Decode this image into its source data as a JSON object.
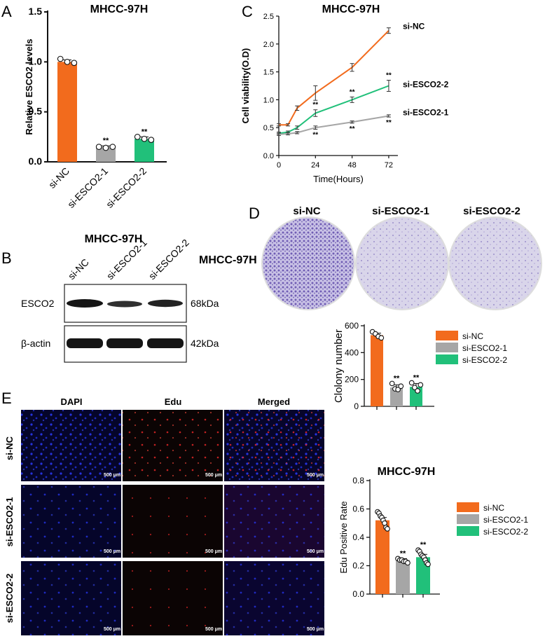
{
  "colors": {
    "siNC": "#f26b1d",
    "siE1": "#a6a6a6",
    "siE2": "#21c07a",
    "crystal": "#6a55b0",
    "dapi": "#1a22d8",
    "edu": "#c4232a"
  },
  "panels": {
    "A": "A",
    "B": "B",
    "C": "C",
    "D": "D",
    "E": "E"
  },
  "groups": [
    "si-NC",
    "si-ESCO2-1",
    "si-ESCO2-2"
  ],
  "sig": "**",
  "panelB": {
    "title": "MHCC-97H",
    "side_title": "MHCC-97H",
    "lanes": [
      "si-NC",
      "si-ESCO2-1",
      "si-ESCO2-2"
    ],
    "rows": [
      {
        "label": "ESCO2",
        "size": "68kDa",
        "band_intensity": [
          1.0,
          0.55,
          0.75
        ]
      },
      {
        "label": "β-actin",
        "size": "42kDa",
        "band_intensity": [
          1.0,
          1.0,
          1.0
        ]
      }
    ]
  },
  "panelD": {
    "group_labels": [
      "si-NC",
      "si-ESCO2-1",
      "si-ESCO2-2"
    ],
    "colony_density": [
      "high",
      "low",
      "low"
    ]
  },
  "panelE": {
    "columns": [
      "DAPI",
      "Edu",
      "Merged"
    ],
    "rows": [
      "si-NC",
      "si-ESCO2-1",
      "si-ESCO2-2"
    ],
    "scale_bar": "500 μm"
  },
  "chart_data": [
    {
      "id": "A",
      "type": "bar",
      "title": "MHCC-97H",
      "ylabel": "Relative ESCO2 levels",
      "categories": [
        "si-NC",
        "si-ESCO2-1",
        "si-ESCO2-2"
      ],
      "values": [
        1.0,
        0.15,
        0.23
      ],
      "errors": [
        0.02,
        0.01,
        0.02
      ],
      "points": [
        [
          1.03,
          1.0,
          0.99
        ],
        [
          0.15,
          0.14,
          0.15
        ],
        [
          0.25,
          0.23,
          0.22
        ]
      ],
      "significance": [
        "",
        "**",
        "**"
      ],
      "ylim": [
        0,
        1.5
      ],
      "yticks": [
        "0.0",
        "0.5",
        "1.0",
        "1.5"
      ]
    },
    {
      "id": "C",
      "type": "line",
      "title": "MHCC-97H",
      "xlabel": "Time(Hours)",
      "ylabel": "Cell viability(O.D)",
      "x": [
        0,
        6,
        12,
        24,
        48,
        72
      ],
      "xticks": [
        "0",
        "24",
        "48",
        "72"
      ],
      "yticks": [
        "0.0",
        "0.5",
        "1.0",
        "1.5",
        "2.0",
        "2.5"
      ],
      "xlim": [
        0,
        78
      ],
      "ylim": [
        0,
        2.5
      ],
      "series": [
        {
          "name": "si-NC",
          "values": [
            0.55,
            0.55,
            0.85,
            1.12,
            1.58,
            2.24
          ],
          "errors": [
            0.02,
            0.02,
            0.04,
            0.13,
            0.07,
            0.05
          ]
        },
        {
          "name": "si-ESCO2-2",
          "values": [
            0.4,
            0.42,
            0.5,
            0.76,
            1.0,
            1.25
          ],
          "errors": [
            0.02,
            0.02,
            0.03,
            0.06,
            0.05,
            0.1
          ],
          "significance": [
            "",
            "",
            "",
            "**",
            "**",
            "**"
          ]
        },
        {
          "name": "si-ESCO2-1",
          "values": [
            0.38,
            0.39,
            0.41,
            0.5,
            0.6,
            0.71
          ],
          "errors": [
            0.02,
            0.02,
            0.02,
            0.03,
            0.02,
            0.02
          ],
          "significance": [
            "",
            "",
            "",
            "**",
            "**",
            "**"
          ]
        }
      ]
    },
    {
      "id": "D",
      "type": "bar",
      "ylabel": "Clolony number",
      "categories": [
        "si-NC",
        "si-ESCO2-1",
        "si-ESCO2-2"
      ],
      "values": [
        530,
        140,
        145
      ],
      "errors": [
        15,
        20,
        25
      ],
      "points": [
        [
          555,
          540,
          520,
          510
        ],
        [
          170,
          130,
          125,
          150
        ],
        [
          175,
          140,
          115,
          160
        ]
      ],
      "significance": [
        "",
        "**",
        "**"
      ],
      "ylim": [
        0,
        600
      ],
      "yticks": [
        "0",
        "200",
        "400",
        "600"
      ],
      "legend": [
        "si-NC",
        "si-ESCO2-1",
        "si-ESCO2-2"
      ]
    },
    {
      "id": "E",
      "type": "bar",
      "title": "MHCC-97H",
      "ylabel": "Edu Positive Rate",
      "categories": [
        "si-NC",
        "si-ESCO2-1",
        "si-ESCO2-2"
      ],
      "values": [
        0.52,
        0.24,
        0.26
      ],
      "errors": [
        0.02,
        0.01,
        0.02
      ],
      "points": [
        [
          0.58,
          0.57,
          0.55,
          0.54,
          0.52,
          0.5,
          0.47,
          0.46
        ],
        [
          0.25,
          0.24,
          0.24,
          0.23,
          0.23,
          0.22
        ],
        [
          0.31,
          0.3,
          0.28,
          0.27,
          0.26,
          0.24,
          0.22,
          0.21
        ]
      ],
      "significance": [
        "",
        "**",
        "**"
      ],
      "ylim": [
        0,
        0.8
      ],
      "yticks": [
        "0.0",
        "0.2",
        "0.4",
        "0.6",
        "0.8"
      ],
      "legend": [
        "si-NC",
        "si-ESCO2-1",
        "si-ESCO2-2"
      ]
    }
  ]
}
